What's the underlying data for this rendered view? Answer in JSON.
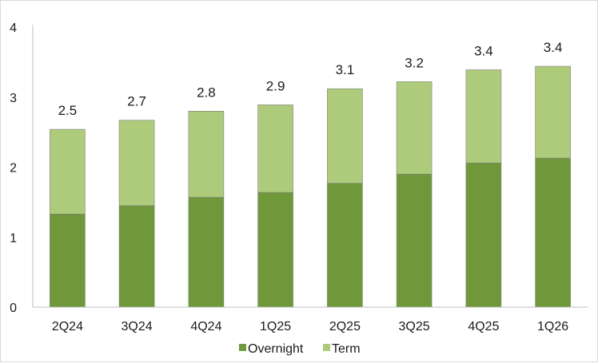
{
  "chart_data": {
    "type": "bar",
    "stacked": true,
    "categories": [
      "2Q24",
      "3Q24",
      "4Q24",
      "1Q25",
      "2Q25",
      "3Q25",
      "4Q25",
      "1Q26"
    ],
    "series": [
      {
        "name": "Overnight",
        "color": "#6f983b",
        "values": [
          1.33,
          1.45,
          1.57,
          1.64,
          1.77,
          1.9,
          2.06,
          2.13
        ]
      },
      {
        "name": "Term",
        "color": "#adcb7b",
        "values": [
          1.21,
          1.22,
          1.23,
          1.25,
          1.35,
          1.32,
          1.33,
          1.31
        ]
      }
    ],
    "total_labels": [
      "2.5",
      "2.7",
      "2.8",
      "2.9",
      "3.1",
      "3.2",
      "3.4",
      "3.4"
    ],
    "y_ticks": [
      "0",
      "1",
      "2",
      "3",
      "4"
    ],
    "ylim": [
      0,
      4
    ],
    "title": "",
    "xlabel": "",
    "ylabel": "",
    "grid": false,
    "legend_position": "bottom"
  }
}
